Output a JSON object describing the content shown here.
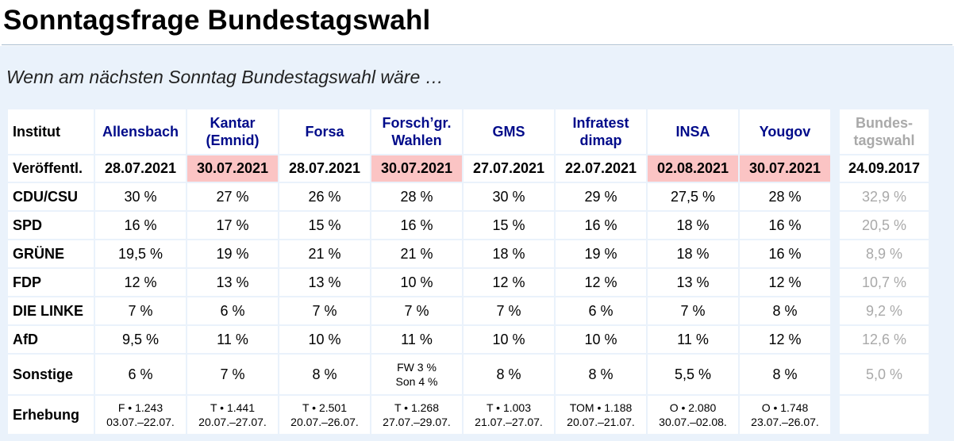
{
  "page": {
    "title": "Sonntagsfrage Bundestagswahl",
    "subtitle": "Wenn am nächsten Sonntag Bundestagswahl wäre …"
  },
  "table": {
    "row_labels": {
      "institut": "Institut",
      "published": "Veröffentl.",
      "survey": "Erhebung"
    },
    "institutes": [
      {
        "line1": "Allensbach",
        "line2": ""
      },
      {
        "line1": "Kantar",
        "line2": "(Emnid)"
      },
      {
        "line1": "Forsa",
        "line2": ""
      },
      {
        "line1": "Forsch’gr.",
        "line2": "Wahlen"
      },
      {
        "line1": "GMS",
        "line2": ""
      },
      {
        "line1": "Infratest",
        "line2": "dimap"
      },
      {
        "line1": "INSA",
        "line2": ""
      },
      {
        "line1": "Yougov",
        "line2": ""
      },
      {
        "line1": "Bundes-",
        "line2": "tagswahl"
      }
    ],
    "dates": [
      "28.07.2021",
      "30.07.2021",
      "28.07.2021",
      "30.07.2021",
      "27.07.2021",
      "22.07.2021",
      "02.08.2021",
      "30.07.2021",
      "24.09.2017"
    ],
    "date_highlighted": [
      false,
      true,
      false,
      true,
      false,
      false,
      true,
      true,
      false
    ],
    "highlight_color": "#fbc4c4",
    "header_color": "#000b8a",
    "reference_color": "#a9a9a9",
    "parties": [
      {
        "name": "CDU/CSU",
        "values": [
          "30 %",
          "27 %",
          "26 %",
          "28 %",
          "30 %",
          "29 %",
          "27,5 %",
          "28 %",
          "32,9 %"
        ]
      },
      {
        "name": "SPD",
        "values": [
          "16 %",
          "17 %",
          "15 %",
          "16 %",
          "15 %",
          "16 %",
          "18 %",
          "16 %",
          "20,5 %"
        ]
      },
      {
        "name": "GRÜNE",
        "values": [
          "19,5 %",
          "19 %",
          "21 %",
          "21 %",
          "18 %",
          "19 %",
          "18 %",
          "16 %",
          "8,9 %"
        ]
      },
      {
        "name": "FDP",
        "values": [
          "12 %",
          "13 %",
          "13 %",
          "10 %",
          "12 %",
          "12 %",
          "13 %",
          "12 %",
          "10,7 %"
        ]
      },
      {
        "name": "DIE LINKE",
        "values": [
          "7 %",
          "6 %",
          "7 %",
          "7 %",
          "7 %",
          "6 %",
          "7 %",
          "8 %",
          "9,2 %"
        ]
      },
      {
        "name": "AfD",
        "values": [
          "9,5 %",
          "11 %",
          "10 %",
          "11 %",
          "10 %",
          "10 %",
          "11 %",
          "12 %",
          "12,6 %"
        ]
      }
    ],
    "others": {
      "name": "Sonstige",
      "values": [
        {
          "line1": "6 %",
          "line2": ""
        },
        {
          "line1": "7 %",
          "line2": ""
        },
        {
          "line1": "8 %",
          "line2": ""
        },
        {
          "line1": "FW 3 %",
          "line2": "Son 4 %"
        },
        {
          "line1": "8 %",
          "line2": ""
        },
        {
          "line1": "8 %",
          "line2": ""
        },
        {
          "line1": "5,5 %",
          "line2": ""
        },
        {
          "line1": "8 %",
          "line2": ""
        },
        {
          "line1": "5,0 %",
          "line2": ""
        }
      ]
    },
    "survey": [
      {
        "line1": "F • 1.243",
        "line2": "03.07.–22.07."
      },
      {
        "line1": "T • 1.441",
        "line2": "20.07.–27.07."
      },
      {
        "line1": "T • 2.501",
        "line2": "20.07.–26.07."
      },
      {
        "line1": "T • 1.268",
        "line2": "27.07.–29.07."
      },
      {
        "line1": "T • 1.003",
        "line2": "21.07.–27.07."
      },
      {
        "line1": "TOM • 1.188",
        "line2": "20.07.–21.07."
      },
      {
        "line1": "O • 2.080",
        "line2": "30.07.–02.08."
      },
      {
        "line1": "O • 1.748",
        "line2": "23.07.–26.07."
      },
      {
        "line1": "",
        "line2": ""
      }
    ]
  }
}
